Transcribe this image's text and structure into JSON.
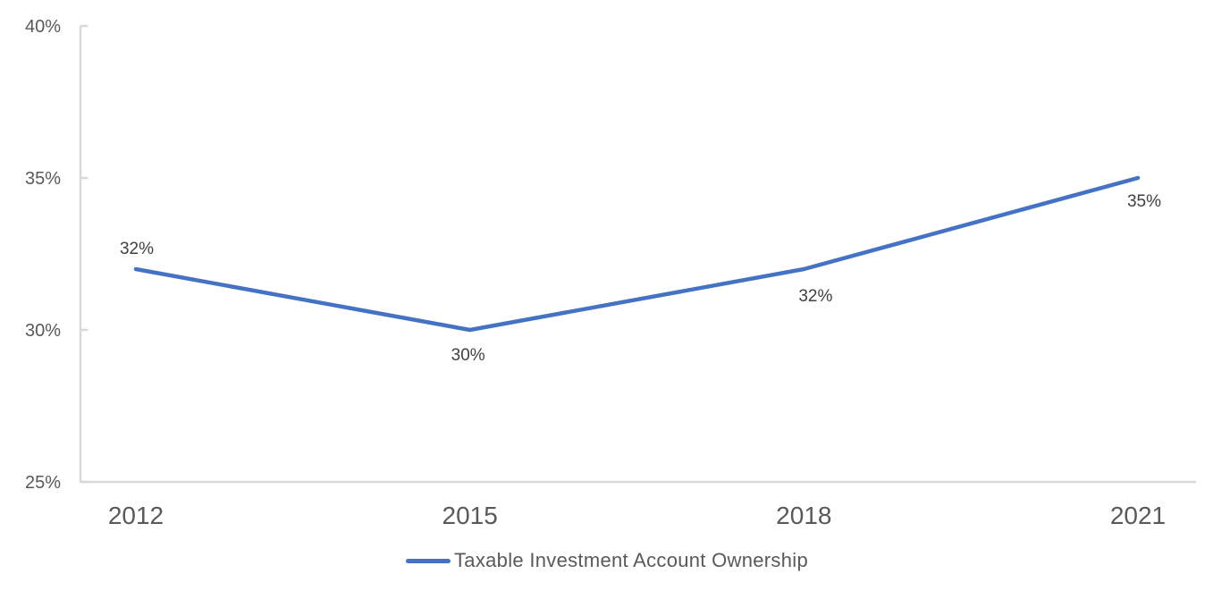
{
  "chart_data": {
    "type": "line",
    "categories": [
      "2012",
      "2015",
      "2018",
      "2021"
    ],
    "series": [
      {
        "name": "Taxable Investment Account Ownership",
        "values": [
          32,
          30,
          32,
          35
        ],
        "data_labels": [
          "32%",
          "30%",
          "32%",
          "35%"
        ]
      }
    ],
    "title": "",
    "xlabel": "",
    "ylabel": "",
    "ylim": [
      25,
      40
    ],
    "y_tick_step": 5,
    "y_tick_labels": [
      "25%",
      "30%",
      "35%",
      "40%"
    ],
    "grid": false,
    "legend_position": "bottom",
    "legend_label": "Taxable Investment Account Ownership",
    "colors": {
      "line": "#4472C4",
      "axis": "#D9D9D9",
      "axis_label": "#595959",
      "data_label": "#404040",
      "background": "#FFFFFF"
    }
  }
}
